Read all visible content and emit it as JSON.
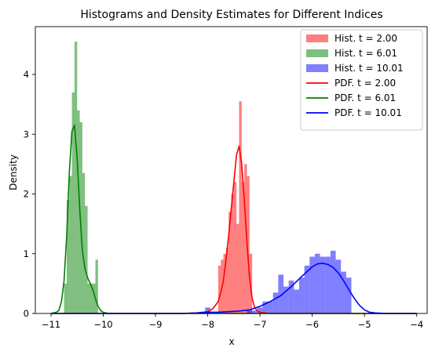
{
  "chart_data": {
    "type": "histogram+line",
    "title": "Histograms and Density Estimates for Different Indices",
    "xlabel": "x",
    "ylabel": "Density",
    "xlim": [
      -11.3,
      -3.8
    ],
    "ylim": [
      0,
      4.8
    ],
    "xticks": [
      -11,
      -10,
      -9,
      -8,
      -7,
      -6,
      -5,
      -4
    ],
    "yticks": [
      0,
      1,
      2,
      3,
      4
    ],
    "legend_position": "top-right",
    "grid": false,
    "histograms": [
      {
        "name": "Hist. t = 2.00",
        "color": "#ff0000",
        "alpha": 0.5,
        "bin_edges": [
          -7.8,
          -7.75,
          -7.7,
          -7.65,
          -7.6,
          -7.55,
          -7.5,
          -7.45,
          -7.4,
          -7.35,
          -7.3,
          -7.25,
          -7.2,
          -7.15
        ],
        "values": [
          0.8,
          0.9,
          1.0,
          1.1,
          1.7,
          2.0,
          2.2,
          1.5,
          3.55,
          2.2,
          2.5,
          2.3,
          1.0
        ]
      },
      {
        "name": "Hist. t = 6.01",
        "color": "#008000",
        "alpha": 0.5,
        "bin_edges": [
          -10.75,
          -10.7,
          -10.65,
          -10.6,
          -10.55,
          -10.5,
          -10.45,
          -10.4,
          -10.35,
          -10.3,
          -10.25,
          -10.2,
          -10.15,
          -10.1
        ],
        "values": [
          0.5,
          1.9,
          2.3,
          3.7,
          4.55,
          3.4,
          3.2,
          2.35,
          1.8,
          0.5,
          0.5,
          0.5,
          0.9
        ]
      },
      {
        "name": "Hist. t = 10.01",
        "color": "#0000ff",
        "alpha": 0.5,
        "bin_edges": [
          -8.05,
          -7.95,
          -7.85,
          -7.75,
          -7.65,
          -7.55,
          -7.45,
          -7.35,
          -7.25,
          -7.15,
          -7.05,
          -6.95,
          -6.85,
          -6.75,
          -6.65,
          -6.55,
          -6.45,
          -6.35,
          -6.25,
          -6.15,
          -6.05,
          -5.95,
          -5.85,
          -5.75,
          -5.65,
          -5.55,
          -5.45,
          -5.35,
          -5.25
        ],
        "values": [
          0.1,
          0.0,
          0.0,
          0.0,
          0.0,
          0.0,
          0.0,
          0.0,
          0.05,
          0.05,
          0.1,
          0.2,
          0.2,
          0.35,
          0.65,
          0.45,
          0.55,
          0.4,
          0.6,
          0.8,
          0.95,
          1.0,
          0.95,
          0.95,
          1.05,
          0.9,
          0.7,
          0.6
        ]
      }
    ],
    "series": [
      {
        "name": "PDF. t = 2.00",
        "color": "#ff0000",
        "x": [
          -11.0,
          -8.5,
          -8.2,
          -8.0,
          -7.9,
          -7.8,
          -7.75,
          -7.7,
          -7.65,
          -7.6,
          -7.55,
          -7.5,
          -7.45,
          -7.4,
          -7.35,
          -7.3,
          -7.25,
          -7.2,
          -7.15,
          -7.1,
          -7.05,
          -7.0,
          -6.9,
          -6.8,
          -4.0
        ],
        "y": [
          0.0,
          0.0,
          0.01,
          0.03,
          0.08,
          0.2,
          0.35,
          0.55,
          0.9,
          1.3,
          1.75,
          2.2,
          2.65,
          2.8,
          2.5,
          1.9,
          1.2,
          0.6,
          0.25,
          0.1,
          0.04,
          0.02,
          0.01,
          0.0,
          0.0
        ]
      },
      {
        "name": "PDF. t = 6.01",
        "color": "#008000",
        "x": [
          -11.0,
          -10.9,
          -10.85,
          -10.8,
          -10.75,
          -10.7,
          -10.65,
          -10.6,
          -10.55,
          -10.5,
          -10.45,
          -10.4,
          -10.35,
          -10.3,
          -10.25,
          -10.2,
          -10.15,
          -10.1,
          -10.05,
          -10.0,
          -9.9,
          -9.8,
          -4.0
        ],
        "y": [
          0.0,
          0.02,
          0.05,
          0.2,
          0.55,
          1.3,
          2.35,
          3.05,
          3.15,
          2.6,
          1.75,
          1.05,
          0.75,
          0.6,
          0.5,
          0.4,
          0.25,
          0.12,
          0.05,
          0.02,
          0.0,
          0.0,
          0.0
        ]
      },
      {
        "name": "PDF. t = 10.01",
        "color": "#0000ff",
        "x": [
          -11.0,
          -9.0,
          -8.5,
          -8.2,
          -8.0,
          -7.8,
          -7.6,
          -7.4,
          -7.2,
          -7.0,
          -6.8,
          -6.6,
          -6.4,
          -6.2,
          -6.0,
          -5.9,
          -5.8,
          -5.7,
          -5.6,
          -5.5,
          -5.4,
          -5.3,
          -5.2,
          -5.1,
          -5.0,
          -4.9,
          -4.8,
          -4.6,
          -4.4,
          -4.2,
          -4.0
        ],
        "y": [
          0.0,
          0.0,
          0.0,
          0.01,
          0.02,
          0.02,
          0.03,
          0.04,
          0.06,
          0.12,
          0.2,
          0.3,
          0.45,
          0.62,
          0.78,
          0.83,
          0.84,
          0.82,
          0.77,
          0.68,
          0.55,
          0.4,
          0.26,
          0.14,
          0.06,
          0.02,
          0.01,
          0.0,
          0.0,
          0.0,
          0.0
        ]
      }
    ]
  }
}
